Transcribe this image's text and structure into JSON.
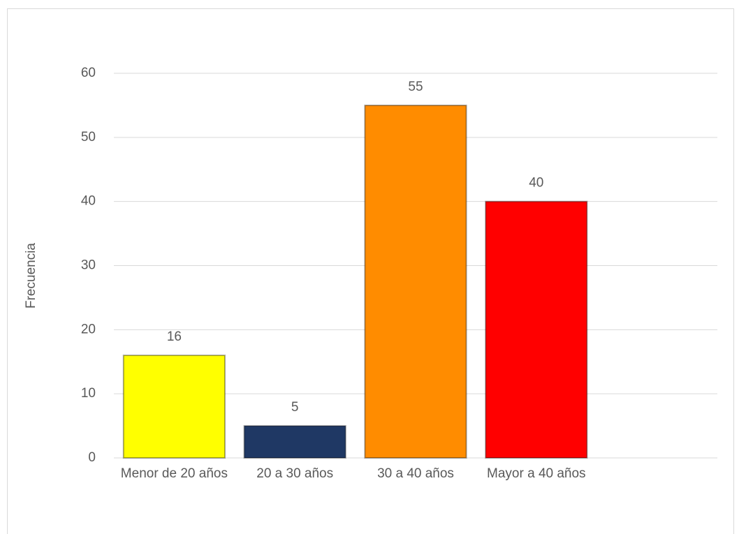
{
  "chart_data": {
    "type": "bar",
    "y_label": "Frecuencia",
    "categories": [
      "Menor de 20 años",
      "20 a 30 años",
      "30 a 40 años",
      "Mayor a 40 años",
      null
    ],
    "values": [
      16,
      5,
      55,
      40,
      null
    ],
    "colors": [
      "#ffff00",
      "#1f3864",
      "#ff8c00",
      "#ff0000",
      null
    ],
    "ylim": [
      0,
      60
    ],
    "yticks": [
      0,
      10,
      20,
      30,
      40,
      50,
      60
    ],
    "grid": true
  }
}
